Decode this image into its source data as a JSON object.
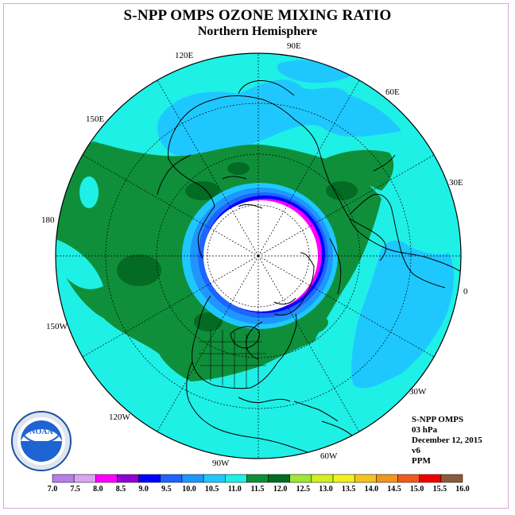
{
  "title": "S-NPP OMPS OZONE MIXING RATIO",
  "subtitle": "Northern Hemisphere",
  "info": {
    "instrument": "S-NPP OMPS",
    "level": "03 hPa",
    "date": "December 12, 2015",
    "version": "v6",
    "units": "PPM"
  },
  "logo": {
    "text": "NOAA"
  },
  "longitude_labels": [
    {
      "id": "90e",
      "text": "90E"
    },
    {
      "id": "60e",
      "text": "60E"
    },
    {
      "id": "30e",
      "text": "30E"
    },
    {
      "id": "0",
      "text": "0"
    },
    {
      "id": "30w",
      "text": "30W"
    },
    {
      "id": "60w",
      "text": "60W"
    },
    {
      "id": "90w",
      "text": "90W"
    },
    {
      "id": "120w",
      "text": "120W"
    },
    {
      "id": "150w",
      "text": "150W"
    },
    {
      "id": "180",
      "text": "180"
    },
    {
      "id": "150e",
      "text": "150E"
    },
    {
      "id": "120e",
      "text": "120E"
    }
  ],
  "colorbar": {
    "colors": [
      "#b57fe8",
      "#d9a6f2",
      "#ff00ff",
      "#8e00d4",
      "#0000ff",
      "#1e64ff",
      "#1f96ff",
      "#1ec8ff",
      "#1ef0e6",
      "#0f8f3a",
      "#036b24",
      "#a0e632",
      "#d2f01e",
      "#f0f01e",
      "#f5c31e",
      "#f0961e",
      "#f05a1e",
      "#f00000",
      "#8b5a3c"
    ],
    "ticks": [
      "7.0",
      "7.5",
      "8.0",
      "8.5",
      "9.0",
      "9.5",
      "10.0",
      "10.5",
      "11.0",
      "11.5",
      "12.0",
      "12.5",
      "13.0",
      "13.5",
      "14.0",
      "14.5",
      "15.0",
      "15.5",
      "16.0"
    ]
  }
}
